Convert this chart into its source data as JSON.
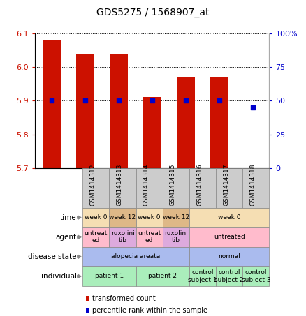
{
  "title": "GDS5275 / 1568907_at",
  "samples": [
    "GSM1414312",
    "GSM1414313",
    "GSM1414314",
    "GSM1414315",
    "GSM1414316",
    "GSM1414317",
    "GSM1414318"
  ],
  "transformed_count": [
    6.08,
    6.04,
    6.04,
    5.91,
    5.97,
    5.97,
    5.7
  ],
  "percentile_rank": [
    50,
    50,
    50,
    50,
    50,
    50,
    45
  ],
  "bar_bottom": 5.7,
  "ylim_left": [
    5.7,
    6.1
  ],
  "ylim_right": [
    0,
    100
  ],
  "yticks_left": [
    5.7,
    5.8,
    5.9,
    6.0,
    6.1
  ],
  "yticks_right": [
    0,
    25,
    50,
    75,
    100
  ],
  "ytick_labels_right": [
    "0",
    "25",
    "50",
    "75",
    "100%"
  ],
  "bar_color": "#CC1100",
  "dot_color": "#0000CC",
  "rows": [
    {
      "label": "individual",
      "cells": [
        {
          "text": "patient 1",
          "colspan": 2,
          "color": "#AAEEBB"
        },
        {
          "text": "patient 2",
          "colspan": 2,
          "color": "#AAEEBB"
        },
        {
          "text": "control\nsubject 1",
          "colspan": 1,
          "color": "#AAEEBB"
        },
        {
          "text": "control\nsubject 2",
          "colspan": 1,
          "color": "#AAEEBB"
        },
        {
          "text": "control\nsubject 3",
          "colspan": 1,
          "color": "#AAEEBB"
        }
      ]
    },
    {
      "label": "disease state",
      "cells": [
        {
          "text": "alopecia areata",
          "colspan": 4,
          "color": "#AABBEE"
        },
        {
          "text": "normal",
          "colspan": 3,
          "color": "#AABBEE"
        }
      ]
    },
    {
      "label": "agent",
      "cells": [
        {
          "text": "untreat\ned",
          "colspan": 1,
          "color": "#FFBBCC"
        },
        {
          "text": "ruxolini\ntib",
          "colspan": 1,
          "color": "#DDAADD"
        },
        {
          "text": "untreat\ned",
          "colspan": 1,
          "color": "#FFBBCC"
        },
        {
          "text": "ruxolini\ntib",
          "colspan": 1,
          "color": "#DDAADD"
        },
        {
          "text": "untreated",
          "colspan": 3,
          "color": "#FFBBCC"
        }
      ]
    },
    {
      "label": "time",
      "cells": [
        {
          "text": "week 0",
          "colspan": 1,
          "color": "#F5DEB3"
        },
        {
          "text": "week 12",
          "colspan": 1,
          "color": "#DEB887"
        },
        {
          "text": "week 0",
          "colspan": 1,
          "color": "#F5DEB3"
        },
        {
          "text": "week 12",
          "colspan": 1,
          "color": "#DEB887"
        },
        {
          "text": "week 0",
          "colspan": 3,
          "color": "#F5DEB3"
        }
      ]
    }
  ],
  "sample_cell_color": "#CCCCCC",
  "fig_width": 4.38,
  "fig_height": 4.53
}
